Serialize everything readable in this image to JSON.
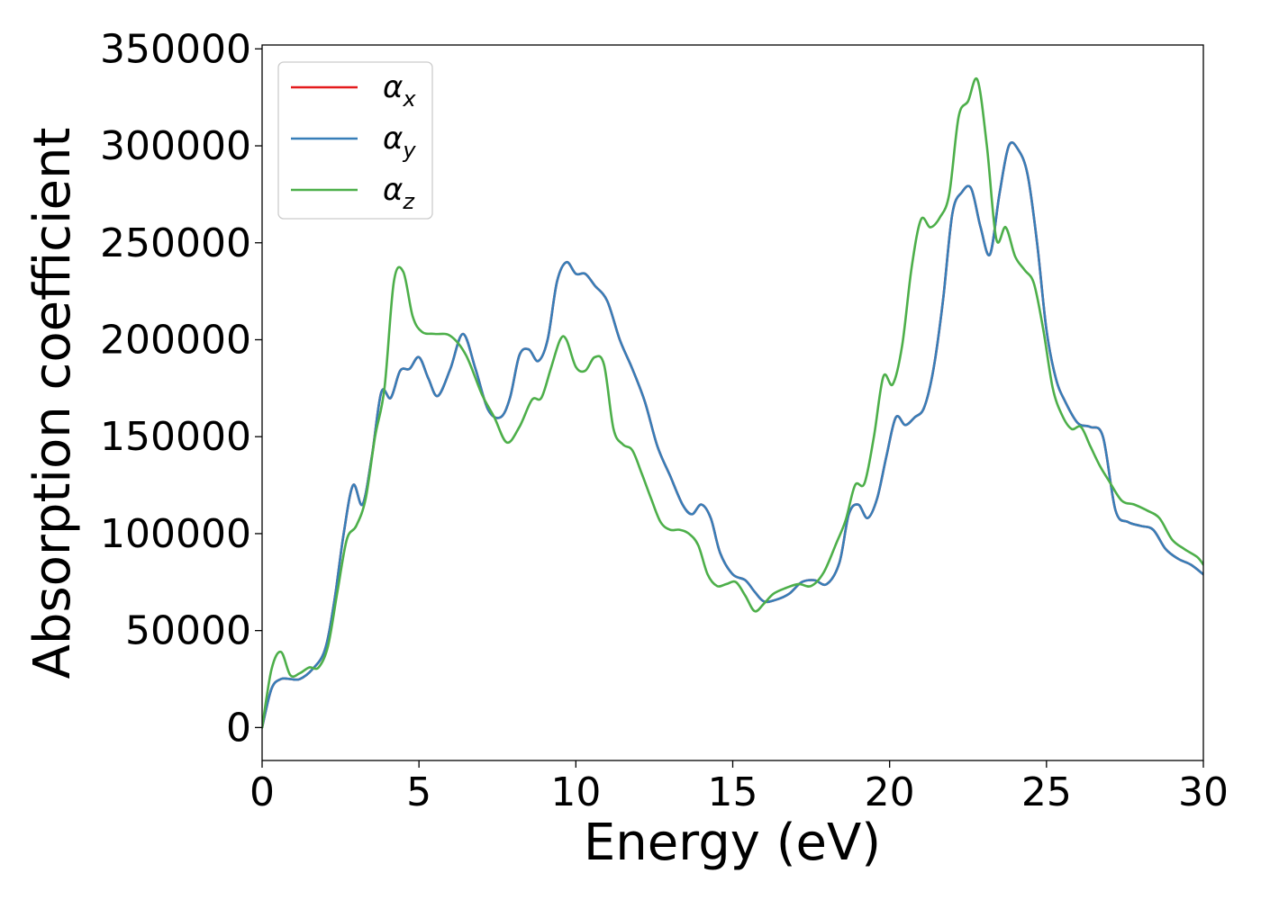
{
  "chart_data": {
    "type": "line",
    "title": "",
    "xlabel": "Energy (eV)",
    "ylabel": "Absorption coefficient",
    "xlim": [
      0,
      30
    ],
    "ylim": [
      -17000,
      352000
    ],
    "xticks": [
      0,
      5,
      10,
      15,
      20,
      25,
      30
    ],
    "xtick_labels": [
      "0",
      "5",
      "10",
      "15",
      "20",
      "25",
      "30"
    ],
    "yticks": [
      0,
      50000,
      100000,
      150000,
      200000,
      250000,
      300000,
      350000
    ],
    "ytick_labels": [
      "0",
      "50000",
      "100000",
      "150000",
      "200000",
      "250000",
      "300000",
      "350000"
    ],
    "grid": false,
    "legend_position": "top-left",
    "series": [
      {
        "name": "αx",
        "base": "α",
        "sub": "x",
        "color": "#e41a1c",
        "x": [
          0,
          0.3,
          0.6,
          0.9,
          1.2,
          1.6,
          2.0,
          2.3,
          2.6,
          2.9,
          3.2,
          3.5,
          3.8,
          4.1,
          4.4,
          4.7,
          5.0,
          5.3,
          5.6,
          6.0,
          6.4,
          6.8,
          7.2,
          7.6,
          7.9,
          8.2,
          8.5,
          8.8,
          9.1,
          9.4,
          9.7,
          10.0,
          10.3,
          10.6,
          11.0,
          11.4,
          11.8,
          12.2,
          12.6,
          13.0,
          13.4,
          13.7,
          14.0,
          14.3,
          14.6,
          15.0,
          15.4,
          15.7,
          16.0,
          16.4,
          16.8,
          17.2,
          17.6,
          18.0,
          18.4,
          18.7,
          19.0,
          19.3,
          19.6,
          19.9,
          20.2,
          20.5,
          20.8,
          21.1,
          21.4,
          21.7,
          22.0,
          22.3,
          22.6,
          22.9,
          23.2,
          23.5,
          23.8,
          24.1,
          24.4,
          24.7,
          25.0,
          25.3,
          25.6,
          26.0,
          26.4,
          26.8,
          27.2,
          27.6,
          28.0,
          28.4,
          28.8,
          29.2,
          29.6,
          30.0
        ],
        "y": [
          0,
          20000,
          25000,
          25000,
          25000,
          30000,
          40000,
          65000,
          100000,
          125000,
          115000,
          140000,
          173000,
          170000,
          184000,
          185000,
          191000,
          180000,
          171000,
          185000,
          203000,
          185000,
          164000,
          160000,
          170000,
          192000,
          195000,
          189000,
          200000,
          230000,
          240000,
          234000,
          234000,
          228000,
          220000,
          200000,
          185000,
          168000,
          145000,
          130000,
          115000,
          110000,
          115000,
          108000,
          90000,
          79000,
          76000,
          70000,
          65000,
          66000,
          69000,
          75000,
          76000,
          74000,
          85000,
          110000,
          115000,
          108000,
          118000,
          140000,
          160000,
          156000,
          160000,
          165000,
          185000,
          220000,
          265000,
          276000,
          278000,
          258000,
          244000,
          275000,
          300000,
          298000,
          285000,
          250000,
          205000,
          180000,
          168000,
          157000,
          155000,
          150000,
          112000,
          106000,
          104000,
          102000,
          92000,
          87000,
          84000,
          79000
        ]
      },
      {
        "name": "αy",
        "base": "α",
        "sub": "y",
        "color": "#377eb8",
        "x": [
          0,
          0.3,
          0.6,
          0.9,
          1.2,
          1.6,
          2.0,
          2.3,
          2.6,
          2.9,
          3.2,
          3.5,
          3.8,
          4.1,
          4.4,
          4.7,
          5.0,
          5.3,
          5.6,
          6.0,
          6.4,
          6.8,
          7.2,
          7.6,
          7.9,
          8.2,
          8.5,
          8.8,
          9.1,
          9.4,
          9.7,
          10.0,
          10.3,
          10.6,
          11.0,
          11.4,
          11.8,
          12.2,
          12.6,
          13.0,
          13.4,
          13.7,
          14.0,
          14.3,
          14.6,
          15.0,
          15.4,
          15.7,
          16.0,
          16.4,
          16.8,
          17.2,
          17.6,
          18.0,
          18.4,
          18.7,
          19.0,
          19.3,
          19.6,
          19.9,
          20.2,
          20.5,
          20.8,
          21.1,
          21.4,
          21.7,
          22.0,
          22.3,
          22.6,
          22.9,
          23.2,
          23.5,
          23.8,
          24.1,
          24.4,
          24.7,
          25.0,
          25.3,
          25.6,
          26.0,
          26.4,
          26.8,
          27.2,
          27.6,
          28.0,
          28.4,
          28.8,
          29.2,
          29.6,
          30.0
        ],
        "y": [
          0,
          20000,
          25000,
          25000,
          25000,
          30000,
          40000,
          65000,
          100000,
          125000,
          115000,
          140000,
          173000,
          170000,
          184000,
          185000,
          191000,
          180000,
          171000,
          185000,
          203000,
          185000,
          164000,
          160000,
          170000,
          192000,
          195000,
          189000,
          200000,
          230000,
          240000,
          234000,
          234000,
          228000,
          220000,
          200000,
          185000,
          168000,
          145000,
          130000,
          115000,
          110000,
          115000,
          108000,
          90000,
          79000,
          76000,
          70000,
          65000,
          66000,
          69000,
          75000,
          76000,
          74000,
          85000,
          110000,
          115000,
          108000,
          118000,
          140000,
          160000,
          156000,
          160000,
          165000,
          185000,
          220000,
          265000,
          276000,
          278000,
          258000,
          244000,
          275000,
          300000,
          298000,
          285000,
          250000,
          205000,
          180000,
          168000,
          157000,
          155000,
          150000,
          112000,
          106000,
          104000,
          102000,
          92000,
          87000,
          84000,
          79000
        ]
      },
      {
        "name": "αz",
        "base": "α",
        "sub": "z",
        "color": "#4daf4a",
        "x": [
          0,
          0.3,
          0.6,
          0.9,
          1.2,
          1.5,
          1.8,
          2.1,
          2.4,
          2.7,
          3.0,
          3.3,
          3.6,
          3.9,
          4.2,
          4.5,
          4.8,
          5.1,
          5.5,
          6.0,
          6.5,
          7.0,
          7.4,
          7.8,
          8.2,
          8.6,
          8.9,
          9.2,
          9.5,
          9.7,
          10.0,
          10.3,
          10.6,
          10.9,
          11.2,
          11.5,
          11.8,
          12.1,
          12.4,
          12.7,
          13.0,
          13.3,
          13.6,
          13.9,
          14.2,
          14.5,
          14.8,
          15.1,
          15.4,
          15.7,
          16.0,
          16.3,
          16.7,
          17.1,
          17.5,
          17.9,
          18.3,
          18.6,
          18.9,
          19.2,
          19.5,
          19.8,
          20.1,
          20.4,
          20.7,
          21.0,
          21.3,
          21.6,
          21.9,
          22.2,
          22.5,
          22.8,
          23.1,
          23.4,
          23.7,
          24.0,
          24.3,
          24.6,
          24.9,
          25.2,
          25.5,
          25.8,
          26.1,
          26.4,
          26.7,
          27.0,
          27.4,
          27.8,
          28.2,
          28.6,
          29.0,
          29.4,
          29.8,
          30.0
        ],
        "y": [
          0,
          30000,
          39000,
          27000,
          28000,
          31000,
          31000,
          42000,
          70000,
          97000,
          104000,
          118000,
          150000,
          175000,
          230000,
          235000,
          212000,
          204000,
          203000,
          202000,
          192000,
          172000,
          160000,
          147000,
          155000,
          169000,
          170000,
          185000,
          200000,
          200000,
          186000,
          184000,
          191000,
          187000,
          154000,
          146000,
          143000,
          131000,
          118000,
          106000,
          102000,
          102000,
          100000,
          94000,
          79000,
          73000,
          74000,
          75000,
          68000,
          60000,
          64000,
          69000,
          72000,
          74000,
          73000,
          80000,
          95000,
          107000,
          125000,
          126000,
          150000,
          181000,
          177000,
          197000,
          237000,
          262000,
          258000,
          263000,
          275000,
          315000,
          323000,
          334000,
          300000,
          252000,
          258000,
          243000,
          236000,
          229000,
          205000,
          175000,
          161000,
          154000,
          155000,
          145000,
          135000,
          127000,
          117000,
          115000,
          112000,
          108000,
          97000,
          92000,
          88000,
          84000
        ]
      }
    ]
  }
}
